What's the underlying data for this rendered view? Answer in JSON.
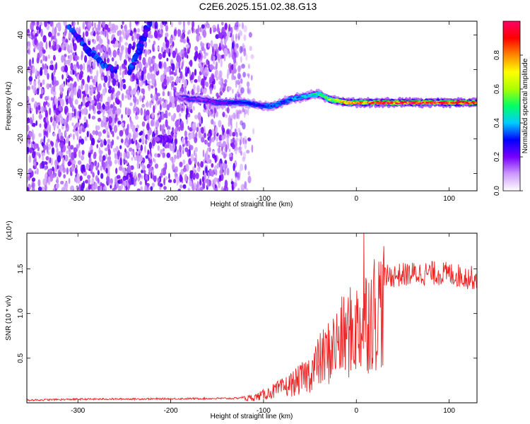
{
  "figure": {
    "title": "C2E6.2025.151.02.38.G13"
  },
  "chart_data": [
    {
      "type": "heatmap",
      "xlabel": "Height of straight line (km)",
      "ylabel": "Frequency (Hz)",
      "xlim": [
        -355,
        130
      ],
      "ylim": [
        -50,
        48
      ],
      "x_ticks": [
        -300,
        -200,
        -100,
        0,
        100
      ],
      "y_ticks": [
        -40,
        -20,
        0,
        20,
        40
      ],
      "colorbar": {
        "label": "Normalized spectral amplitude",
        "range": [
          0,
          1
        ],
        "ticks": [
          "0.0",
          "0.2",
          "0.4",
          "0.6",
          "0.8"
        ],
        "tick_values": [
          0.0,
          0.2,
          0.4,
          0.6,
          0.8
        ],
        "colors": [
          "#ffffff",
          "#cc99ff",
          "#7700ff",
          "#0000ff",
          "#00ccff",
          "#00ff66",
          "#aaff00",
          "#ffff00",
          "#ff8800",
          "#ff0000",
          "#ff0066"
        ]
      },
      "ridge": {
        "x": [
          -190,
          -180,
          -170,
          -160,
          -150,
          -140,
          -130,
          -120,
          -110,
          -100,
          -90,
          -80,
          -70,
          -60,
          -50,
          -40,
          -30,
          -20,
          -10,
          0,
          20,
          40,
          60,
          80,
          100,
          120,
          130
        ],
        "freq": [
          4,
          3,
          3,
          2,
          1,
          1,
          1,
          1,
          0,
          -1,
          -1,
          1,
          3,
          4,
          5,
          6,
          3,
          2,
          1,
          1,
          1,
          1,
          1,
          1,
          1,
          1,
          1
        ],
        "amplitude": [
          0.15,
          0.2,
          0.2,
          0.2,
          0.2,
          0.25,
          0.3,
          0.3,
          0.3,
          0.3,
          0.35,
          0.35,
          0.35,
          0.4,
          0.45,
          0.5,
          0.6,
          0.7,
          0.8,
          0.8,
          0.9,
          0.95,
          0.95,
          0.95,
          0.95,
          0.95,
          0.95
        ]
      },
      "streaks": [
        {
          "x": [
            -310,
            -290,
            -270,
            -260
          ],
          "freq": [
            45,
            32,
            22,
            20
          ],
          "amplitude": 0.3
        },
        {
          "x": [
            -245,
            -237,
            -228,
            -222
          ],
          "freq": [
            18,
            28,
            40,
            48
          ],
          "amplitude": 0.3
        },
        {
          "x": [
            -200,
            -205,
            -210,
            -214
          ],
          "freq": [
            -20,
            -30,
            -40,
            -50
          ],
          "amplitude": 0.2
        }
      ],
      "noise_region_x": [
        -355,
        -110
      ]
    },
    {
      "type": "line",
      "xlabel": "Height of straight line (km)",
      "ylabel": "SNR (10 * v/v)",
      "y_multiplier": "(x10⁴)",
      "xlim": [
        -355,
        130
      ],
      "ylim": [
        0,
        19000
      ],
      "x_ticks": [
        -300,
        -200,
        -100,
        0,
        100
      ],
      "y_ticks": [
        5000,
        10000,
        15000
      ],
      "y_tick_labels": [
        "0.5",
        "1.0",
        "1.5"
      ],
      "line_color": "#ee2222",
      "envelope": {
        "x": [
          -355,
          -300,
          -200,
          -130,
          -110,
          -100,
          -90,
          -80,
          -70,
          -60,
          -50,
          -40,
          -30,
          -20,
          -10,
          0,
          10,
          20,
          30,
          40,
          60,
          80,
          100,
          110,
          120,
          130
        ],
        "y": [
          300,
          400,
          450,
          500,
          800,
          1200,
          1700,
          2200,
          2800,
          3500,
          4500,
          6200,
          7500,
          9000,
          10200,
          11000,
          12500,
          13800,
          14800,
          15000,
          15200,
          15300,
          15200,
          15000,
          14800,
          14700
        ]
      },
      "peak": {
        "x": 8,
        "y": 19000
      }
    }
  ]
}
